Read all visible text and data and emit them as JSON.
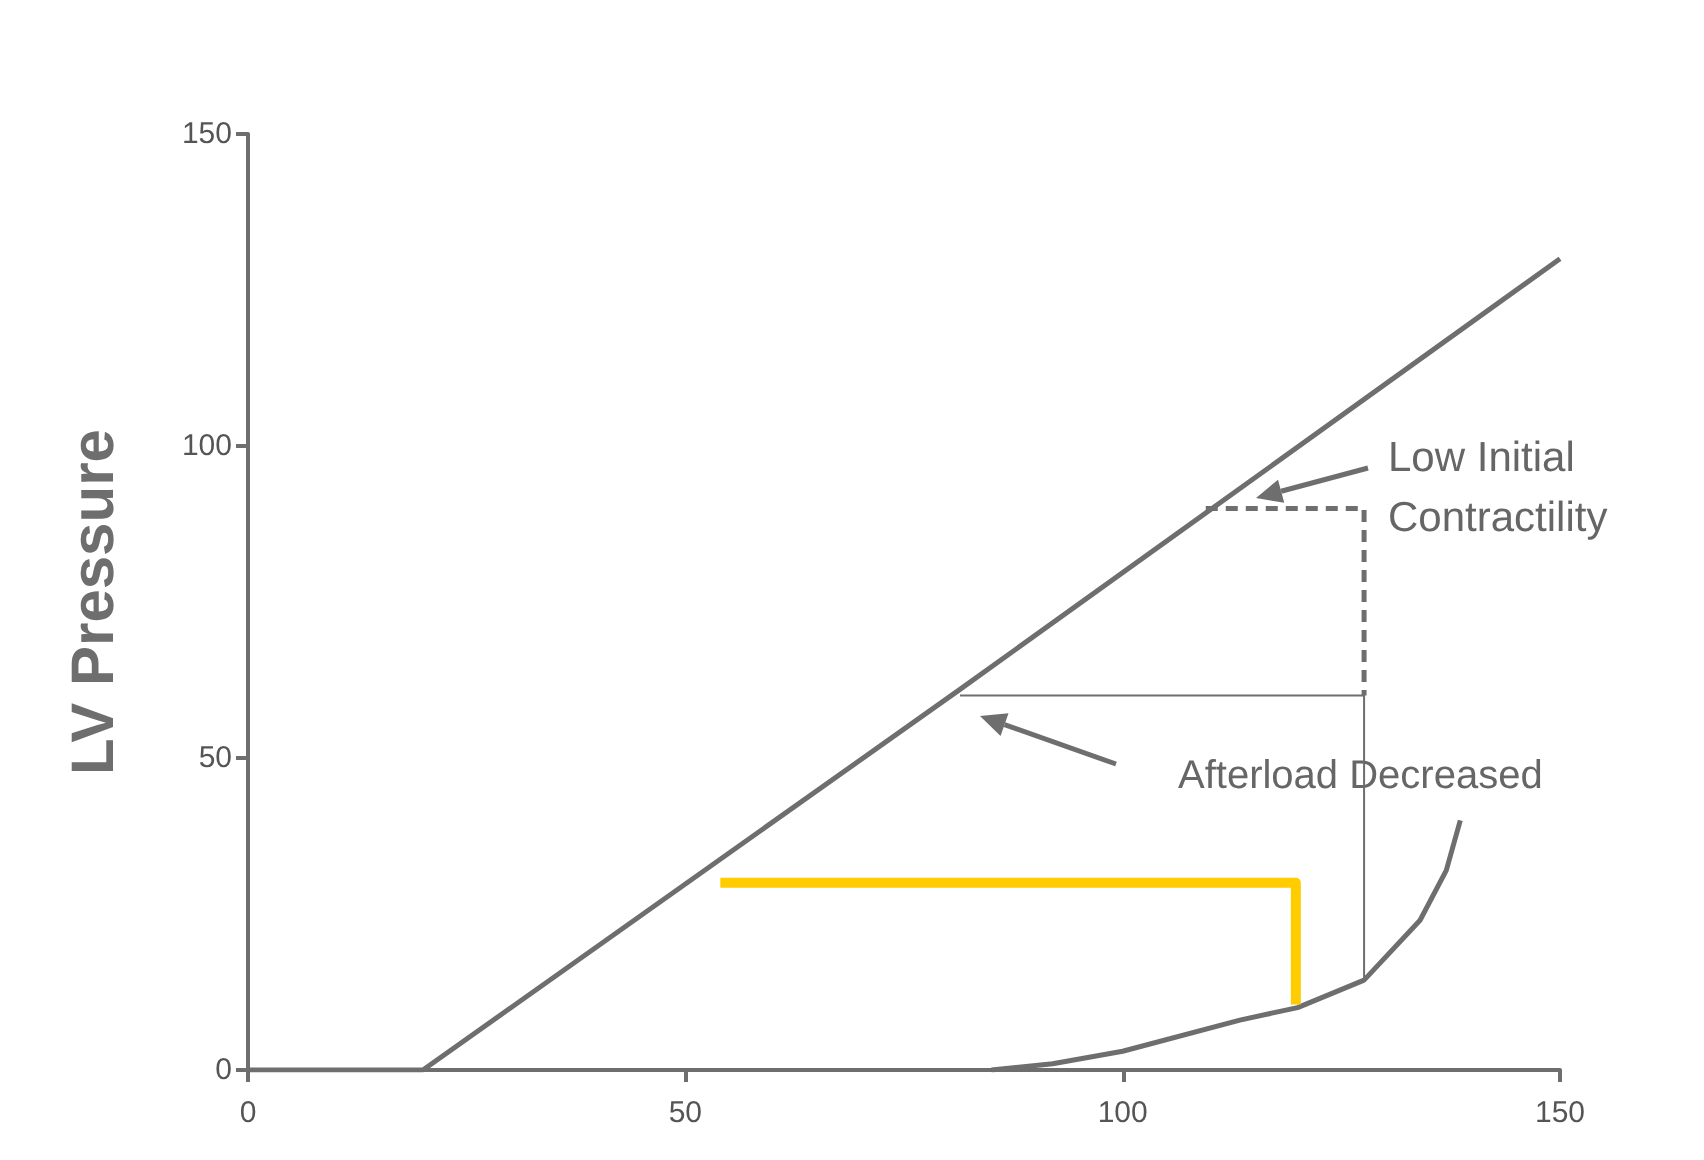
{
  "chart_data": {
    "type": "line",
    "ylabel": "LV Pressure",
    "xlim": [
      0,
      150
    ],
    "ylim": [
      0,
      150
    ],
    "xticks": [
      0,
      50,
      100,
      150
    ],
    "yticks": [
      0,
      50,
      100,
      150
    ],
    "marker": "none",
    "series": [
      {
        "color": "#6e6e6e",
        "line_style": "solid",
        "x": [
          0,
          20,
          81.4,
          150
        ],
        "values": [
          0,
          0,
          61,
          130
        ]
      },
      {
        "color": "#6e6e6e",
        "line_style": "solid",
        "x": [
          85,
          92,
          100,
          113.4,
          120,
          127.6,
          134,
          137,
          138.6
        ],
        "values": [
          0,
          1,
          3,
          8,
          10,
          14.4,
          24,
          32,
          40
        ]
      },
      {
        "color": "#6e6e6e",
        "line_style": "dashed",
        "x": [
          109.5,
          127.6,
          127.6
        ],
        "values": [
          90,
          90,
          60
        ]
      },
      {
        "color": "#6e6e6e",
        "line_style": "solid",
        "x": [
          81.4,
          127.6,
          127.6
        ],
        "values": [
          60,
          60,
          14.4
        ]
      },
      {
        "color": "#ffcc00",
        "line_style": "solid",
        "x": [
          54,
          119.8,
          119.8
        ],
        "values": [
          30,
          30,
          10.5
        ]
      }
    ],
    "annotations": [
      "Low Initial\nContractility",
      "Afterload Decreased"
    ]
  }
}
